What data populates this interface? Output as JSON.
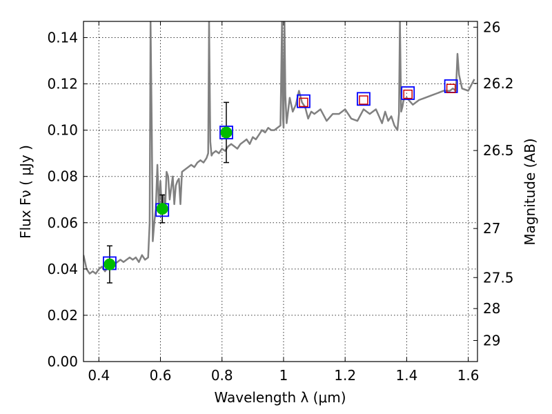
{
  "chart_data": {
    "type": "line",
    "xlabel": "Wavelength  λ (μm)",
    "ylabel": "Flux  Fν  ( μJy )",
    "y2label": "Magnitude (AB)",
    "xlim": [
      0.35,
      1.63
    ],
    "ylim": [
      0.0,
      0.147
    ],
    "grid": true,
    "x_ticks": [
      0.4,
      0.6,
      0.8,
      1.0,
      1.2,
      1.4,
      1.6
    ],
    "x_tick_labels": [
      "0.4",
      "0.6",
      "0.8",
      "1",
      "1.2",
      "1.4",
      "1.6"
    ],
    "y_ticks": [
      0.0,
      0.02,
      0.04,
      0.06,
      0.08,
      0.1,
      0.12,
      0.14
    ],
    "y_tick_labels": [
      "0.00",
      "0.02",
      "0.04",
      "0.06",
      "0.08",
      "0.10",
      "0.12",
      "0.14"
    ],
    "y2_ticks": [
      {
        "label": "26",
        "flux": 0.1445
      },
      {
        "label": "26.2",
        "flux": 0.1202
      },
      {
        "label": "26.5",
        "flux": 0.0912
      },
      {
        "label": "27",
        "flux": 0.0575
      },
      {
        "label": "27.5",
        "flux": 0.0363
      },
      {
        "label": "28",
        "flux": 0.0229
      },
      {
        "label": "29",
        "flux": 0.0091
      }
    ],
    "spectrum": {
      "color": "#808080",
      "x": [
        0.35,
        0.36,
        0.37,
        0.38,
        0.39,
        0.4,
        0.41,
        0.42,
        0.43,
        0.44,
        0.45,
        0.46,
        0.47,
        0.48,
        0.49,
        0.5,
        0.51,
        0.52,
        0.53,
        0.54,
        0.55,
        0.56,
        0.565,
        0.568,
        0.572,
        0.575,
        0.58,
        0.585,
        0.59,
        0.595,
        0.6,
        0.605,
        0.61,
        0.615,
        0.62,
        0.625,
        0.63,
        0.635,
        0.64,
        0.645,
        0.65,
        0.655,
        0.66,
        0.665,
        0.67,
        0.68,
        0.69,
        0.7,
        0.71,
        0.72,
        0.73,
        0.74,
        0.75,
        0.755,
        0.758,
        0.762,
        0.766,
        0.77,
        0.78,
        0.79,
        0.8,
        0.81,
        0.82,
        0.83,
        0.84,
        0.85,
        0.86,
        0.87,
        0.88,
        0.89,
        0.9,
        0.91,
        0.92,
        0.93,
        0.94,
        0.95,
        0.96,
        0.97,
        0.98,
        0.99,
        0.995,
        0.998,
        1.0,
        1.003,
        1.006,
        1.01,
        1.02,
        1.03,
        1.04,
        1.05,
        1.06,
        1.07,
        1.08,
        1.09,
        1.1,
        1.12,
        1.14,
        1.16,
        1.18,
        1.2,
        1.22,
        1.24,
        1.26,
        1.28,
        1.3,
        1.31,
        1.32,
        1.33,
        1.34,
        1.35,
        1.36,
        1.37,
        1.375,
        1.378,
        1.382,
        1.386,
        1.39,
        1.4,
        1.42,
        1.44,
        1.46,
        1.48,
        1.5,
        1.52,
        1.54,
        1.55,
        1.56,
        1.565,
        1.57,
        1.58,
        1.6,
        1.62
      ],
      "y": [
        0.046,
        0.04,
        0.038,
        0.039,
        0.038,
        0.04,
        0.041,
        0.039,
        0.041,
        0.04,
        0.042,
        0.043,
        0.044,
        0.043,
        0.044,
        0.045,
        0.044,
        0.045,
        0.043,
        0.046,
        0.044,
        0.045,
        0.06,
        0.147,
        0.1,
        0.052,
        0.06,
        0.066,
        0.085,
        0.066,
        0.078,
        0.064,
        0.072,
        0.065,
        0.082,
        0.08,
        0.07,
        0.075,
        0.08,
        0.068,
        0.076,
        0.078,
        0.079,
        0.068,
        0.082,
        0.083,
        0.084,
        0.085,
        0.084,
        0.086,
        0.087,
        0.086,
        0.088,
        0.09,
        0.147,
        0.095,
        0.089,
        0.09,
        0.091,
        0.09,
        0.092,
        0.091,
        0.093,
        0.094,
        0.093,
        0.092,
        0.094,
        0.095,
        0.096,
        0.094,
        0.097,
        0.096,
        0.098,
        0.1,
        0.099,
        0.101,
        0.1,
        0.1,
        0.101,
        0.102,
        0.147,
        0.105,
        0.101,
        0.147,
        0.115,
        0.103,
        0.114,
        0.108,
        0.111,
        0.117,
        0.112,
        0.11,
        0.105,
        0.108,
        0.107,
        0.109,
        0.104,
        0.107,
        0.107,
        0.109,
        0.105,
        0.104,
        0.109,
        0.107,
        0.109,
        0.106,
        0.103,
        0.108,
        0.104,
        0.106,
        0.102,
        0.1,
        0.107,
        0.147,
        0.108,
        0.11,
        0.113,
        0.114,
        0.111,
        0.113,
        0.114,
        0.115,
        0.116,
        0.117,
        0.117,
        0.118,
        0.117,
        0.133,
        0.124,
        0.118,
        0.117,
        0.122
      ]
    },
    "photometry_filled": {
      "color": "#00bb00",
      "x": [
        0.435,
        0.606,
        0.814
      ],
      "y": [
        0.042,
        0.066,
        0.099
      ],
      "err": [
        0.008,
        0.006,
        0.013
      ]
    },
    "model_squares": {
      "color": "#0000ff",
      "x": [
        0.435,
        0.606,
        0.814,
        1.065,
        1.26,
        1.404,
        1.544
      ],
      "y": [
        0.0425,
        0.0655,
        0.099,
        0.1125,
        0.1135,
        0.116,
        0.119
      ]
    },
    "upper_squares": {
      "color": "#cc0000",
      "x": [
        1.065,
        1.26,
        1.404,
        1.544
      ],
      "y": [
        0.112,
        0.113,
        0.1155,
        0.118
      ]
    }
  }
}
